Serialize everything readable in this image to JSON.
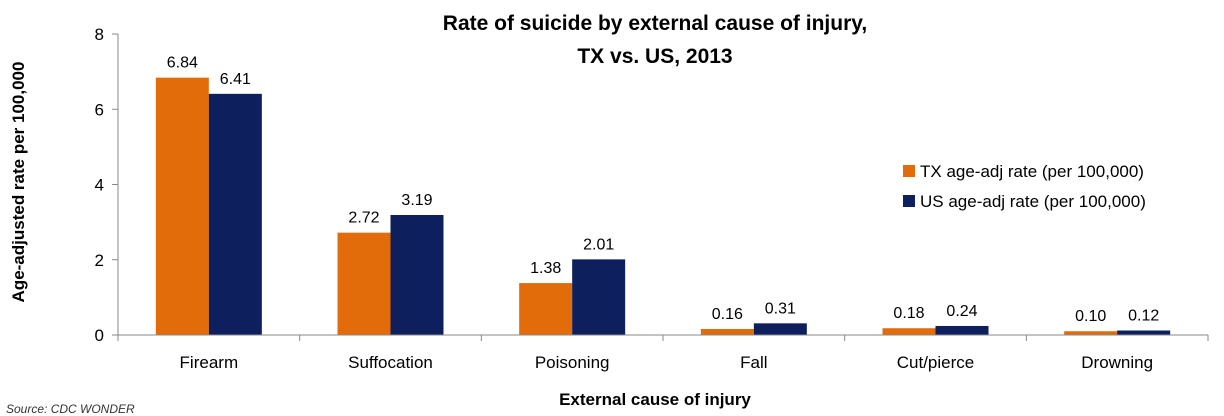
{
  "chart_data": {
    "type": "bar",
    "title": [
      "Rate of suicide by external cause of injury,",
      "TX vs. US, 2013"
    ],
    "xlabel": "External cause of injury",
    "ylabel": "Age-adjusted rate per 100,000",
    "source": "Source: CDC WONDER",
    "categories": [
      "Firearm",
      "Suffocation",
      "Poisoning",
      "Fall",
      "Cut/pierce",
      "Drowning"
    ],
    "series": [
      {
        "name": "TX age-adj rate (per 100,000)",
        "color": "#E36C0A",
        "values": [
          6.84,
          2.72,
          1.38,
          0.16,
          0.18,
          0.1
        ],
        "labels": [
          "6.84",
          "2.72",
          "1.38",
          "0.16",
          "0.18",
          "0.10"
        ]
      },
      {
        "name": "US age-adj rate (per 100,000)",
        "color": "#0D1F5C",
        "values": [
          6.41,
          3.19,
          2.01,
          0.31,
          0.24,
          0.12
        ],
        "labels": [
          "6.41",
          "3.19",
          "2.01",
          "0.31",
          "0.24",
          "0.12"
        ]
      }
    ],
    "ylim": [
      0,
      8
    ],
    "yticks": [
      "0",
      "2",
      "4",
      "6",
      "8"
    ],
    "grid": false,
    "legend_position": "right"
  }
}
